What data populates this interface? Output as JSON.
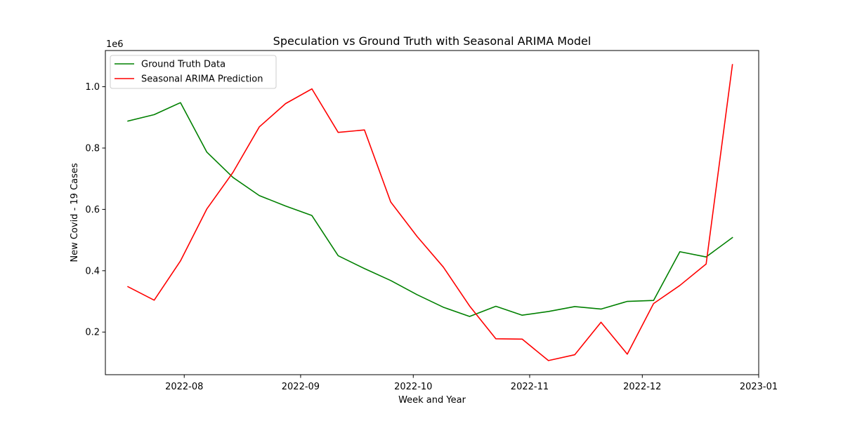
{
  "chart_data": {
    "type": "line",
    "title": "Speculation vs Ground Truth with Seasonal ARIMA Model",
    "xlabel": "Week and Year",
    "ylabel": "New Covid - 19 Cases",
    "y_offset_label": "1e6",
    "x": [
      "2022-07-17",
      "2022-07-24",
      "2022-07-31",
      "2022-08-07",
      "2022-08-14",
      "2022-08-21",
      "2022-08-28",
      "2022-09-04",
      "2022-09-11",
      "2022-09-18",
      "2022-09-25",
      "2022-10-02",
      "2022-10-09",
      "2022-10-16",
      "2022-10-23",
      "2022-10-30",
      "2022-11-06",
      "2022-11-13",
      "2022-11-20",
      "2022-11-27",
      "2022-12-04",
      "2022-12-11",
      "2022-12-18",
      "2022-12-25"
    ],
    "series": [
      {
        "name": "Ground Truth Data",
        "color": "#008000",
        "values": [
          0.888,
          0.909,
          0.948,
          0.787,
          0.704,
          0.645,
          0.611,
          0.58,
          0.449,
          0.407,
          0.368,
          0.322,
          0.281,
          0.251,
          0.284,
          0.255,
          0.267,
          0.283,
          0.275,
          0.3,
          0.303,
          0.462,
          0.445,
          0.508
        ]
      },
      {
        "name": "Seasonal ARIMA Prediction",
        "color": "#ff0000",
        "values": [
          0.348,
          0.304,
          0.432,
          0.601,
          0.721,
          0.869,
          0.945,
          0.993,
          0.851,
          0.859,
          0.624,
          0.512,
          0.412,
          0.285,
          0.178,
          0.177,
          0.107,
          0.126,
          0.232,
          0.128,
          0.293,
          0.352,
          0.422,
          1.072
        ]
      }
    ],
    "xticks": [
      {
        "label": "2022-08",
        "date": "2022-08-01"
      },
      {
        "label": "2022-09",
        "date": "2022-09-01"
      },
      {
        "label": "2022-10",
        "date": "2022-10-01"
      },
      {
        "label": "2022-11",
        "date": "2022-11-01"
      },
      {
        "label": "2022-12",
        "date": "2022-12-01"
      },
      {
        "label": "2023-01",
        "date": "2023-01-01"
      }
    ],
    "yticks": [
      {
        "label": "0.2",
        "value": 0.2
      },
      {
        "label": "0.4",
        "value": 0.4
      },
      {
        "label": "0.6",
        "value": 0.6
      },
      {
        "label": "0.8",
        "value": 0.8
      },
      {
        "label": "1.0",
        "value": 1.0
      }
    ],
    "xlim": [
      "2022-07-11",
      "2023-01-01"
    ],
    "ylim": [
      0.061,
      1.118
    ],
    "grid": false,
    "legend_position": "upper left"
  }
}
